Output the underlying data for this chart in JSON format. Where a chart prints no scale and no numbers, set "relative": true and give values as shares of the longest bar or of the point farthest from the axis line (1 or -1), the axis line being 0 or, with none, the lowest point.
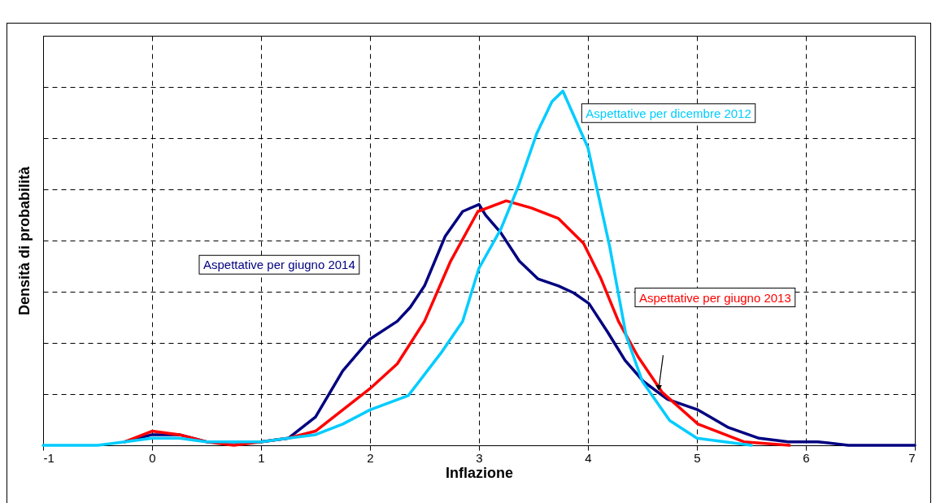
{
  "chart_data": {
    "type": "line",
    "xlabel": "Inflazione",
    "ylabel": "Densità di probabilità",
    "relative": true,
    "grid": true,
    "legend": false,
    "xlim": [
      -1,
      7
    ],
    "xticks": [
      -1,
      0,
      1,
      2,
      3,
      4,
      5,
      6,
      7
    ],
    "series": [
      {
        "name": "Aspettative per dicembre 2012",
        "color": "#00ccff",
        "x": [
          -1,
          -0.5,
          -0.25,
          0,
          0.25,
          0.5,
          0.75,
          1,
          1.25,
          1.5,
          1.75,
          2,
          2.35,
          2.65,
          2.85,
          3,
          3.2,
          3.36,
          3.53,
          3.67,
          3.77,
          4,
          4.2,
          4.35,
          4.5,
          4.75,
          5,
          5.5
        ],
        "values": [
          0,
          0,
          0.01,
          0.02,
          0.02,
          0.01,
          0.01,
          0.01,
          0.02,
          0.03,
          0.06,
          0.1,
          0.14,
          0.26,
          0.35,
          0.5,
          0.61,
          0.73,
          0.88,
          0.97,
          1,
          0.84,
          0.56,
          0.31,
          0.18,
          0.07,
          0.02,
          0
        ]
      },
      {
        "name": "Aspettative per giugno 2013",
        "color": "#ff0000",
        "x": [
          -0.25,
          0,
          0.25,
          0.5,
          0.75,
          1,
          1.25,
          1.5,
          1.75,
          2,
          2.25,
          2.5,
          2.74,
          2.99,
          3.25,
          3.48,
          3.73,
          3.96,
          4.12,
          4.28,
          4.46,
          4.68,
          5.01,
          5.43,
          5.85
        ],
        "values": [
          0.01,
          0.04,
          0.03,
          0.01,
          0,
          0.01,
          0.02,
          0.04,
          0.1,
          0.16,
          0.23,
          0.35,
          0.52,
          0.66,
          0.69,
          0.67,
          0.64,
          0.57,
          0.47,
          0.35,
          0.25,
          0.15,
          0.06,
          0.01,
          0
        ]
      },
      {
        "name": "Aspettative per giugno 2014",
        "color": "#000080",
        "x": [
          -0.25,
          0,
          0.25,
          0.5,
          0.75,
          1,
          1.25,
          1.5,
          1.75,
          2,
          2.25,
          2.37,
          2.5,
          2.69,
          2.85,
          3,
          3.06,
          3.2,
          3.37,
          3.54,
          3.73,
          3.87,
          4.01,
          4.18,
          4.34,
          4.51,
          4.73,
          5.01,
          5.29,
          5.57,
          5.84,
          6.11,
          6.39,
          7
        ],
        "values": [
          0.01,
          0.03,
          0.03,
          0.01,
          0.01,
          0.01,
          0.02,
          0.08,
          0.21,
          0.3,
          0.35,
          0.39,
          0.45,
          0.59,
          0.66,
          0.68,
          0.65,
          0.6,
          0.52,
          0.47,
          0.45,
          0.43,
          0.4,
          0.32,
          0.24,
          0.18,
          0.13,
          0.1,
          0.05,
          0.02,
          0.01,
          0.01,
          0,
          0
        ]
      }
    ]
  }
}
